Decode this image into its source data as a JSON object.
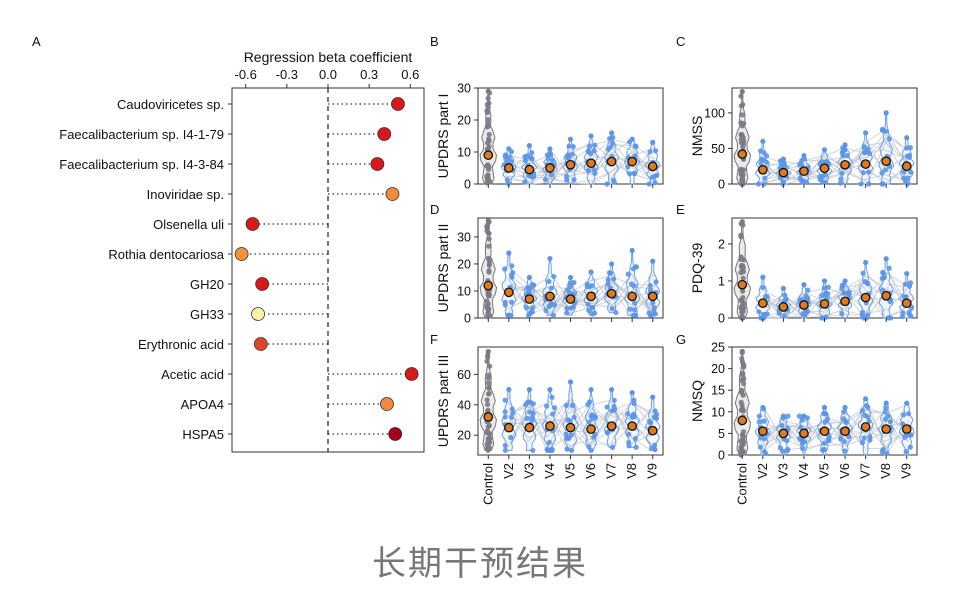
{
  "caption": "长期干预结果",
  "colors": {
    "control": "#7a7a85",
    "visit": "#5b95e6",
    "mean": "#e07a1f",
    "line": "#c8ccd4",
    "violin_stroke": "#6c9fe8"
  },
  "chart_data": [
    {
      "panel": "A",
      "type": "scatter",
      "title": "Regression beta coefficient",
      "xlim": [
        -0.7,
        0.7
      ],
      "xticks": [
        -0.6,
        -0.3,
        0.0,
        0.3,
        0.6
      ],
      "xtick_labels": [
        "-0.6",
        "-0.3",
        "0.0",
        "0.3",
        "0.6"
      ],
      "categories": [
        "Caudoviricetes sp.",
        "Faecalibacterium sp. I4-1-79",
        "Faecalibacterium sp. I4-3-84",
        "Inoviridae sp.",
        "Olsenella uli",
        "Rothia dentocariosa",
        "GH20",
        "GH33",
        "Erythronic acid",
        "Acetic acid",
        "APOA4",
        "HSPA5"
      ],
      "values": [
        0.51,
        0.41,
        0.36,
        0.47,
        -0.55,
        -0.63,
        -0.48,
        -0.51,
        -0.49,
        0.61,
        0.43,
        0.49
      ],
      "point_colors": [
        "#d7191c",
        "#d7191c",
        "#d7191c",
        "#f08a3c",
        "#d7191c",
        "#f3913c",
        "#d7191c",
        "#fff3a6",
        "#e3432a",
        "#d7191c",
        "#f08a3c",
        "#a6001f"
      ]
    },
    {
      "panel": "B",
      "type": "violin",
      "ylabel": "UPDRS part I",
      "categories": [
        "Control",
        "V2",
        "V3",
        "V4",
        "V5",
        "V6",
        "V7",
        "V8",
        "V9"
      ],
      "ylim": [
        0,
        30
      ],
      "yticks": [
        0,
        10,
        20,
        30
      ],
      "means": [
        9,
        5,
        4.5,
        5,
        6,
        6.5,
        7,
        7,
        5.5
      ],
      "maxima": [
        29,
        11,
        12,
        11,
        14,
        15,
        16,
        14,
        13
      ],
      "minima": [
        0,
        0,
        0,
        0,
        0,
        0,
        0,
        0,
        0
      ]
    },
    {
      "panel": "C",
      "type": "violin",
      "ylabel": "NMSS",
      "categories": [
        "Control",
        "V2",
        "V3",
        "V4",
        "V5",
        "V6",
        "V7",
        "V8",
        "V9"
      ],
      "ylim": [
        0,
        135
      ],
      "yticks": [
        0,
        50,
        100
      ],
      "means": [
        42,
        20,
        16,
        18,
        22,
        27,
        28,
        32,
        25
      ],
      "maxima": [
        130,
        60,
        35,
        40,
        48,
        55,
        72,
        100,
        65
      ],
      "minima": [
        0,
        0,
        0,
        0,
        0,
        0,
        0,
        0,
        0
      ]
    },
    {
      "panel": "D",
      "type": "violin",
      "ylabel": "UPDRS part II",
      "categories": [
        "Control",
        "V2",
        "V3",
        "V4",
        "V5",
        "V6",
        "V7",
        "V8",
        "V9"
      ],
      "ylim": [
        0,
        37
      ],
      "yticks": [
        0,
        10,
        20,
        30
      ],
      "means": [
        12,
        9.5,
        7,
        8,
        7,
        8,
        9,
        8,
        8
      ],
      "maxima": [
        36,
        24,
        15,
        22,
        15,
        17,
        20,
        25,
        21
      ],
      "minima": [
        0,
        1,
        1,
        1,
        1,
        1,
        2,
        1,
        1
      ]
    },
    {
      "panel": "E",
      "type": "violin",
      "ylabel": "PDQ-39",
      "categories": [
        "Control",
        "V2",
        "V3",
        "V4",
        "V5",
        "V6",
        "V7",
        "V8",
        "V9"
      ],
      "ylim": [
        0,
        2.7
      ],
      "yticks": [
        0,
        1,
        2
      ],
      "means": [
        0.9,
        0.4,
        0.3,
        0.35,
        0.38,
        0.45,
        0.55,
        0.6,
        0.4
      ],
      "maxima": [
        2.6,
        1.1,
        0.8,
        0.9,
        1.0,
        1.0,
        1.5,
        1.6,
        1.2
      ],
      "minima": [
        0,
        0,
        0,
        0,
        0,
        0,
        0,
        0,
        0
      ]
    },
    {
      "panel": "F",
      "type": "violin",
      "ylabel": "UPDRS part III",
      "categories": [
        "Control",
        "V2",
        "V3",
        "V4",
        "V5",
        "V6",
        "V7",
        "V8",
        "V9"
      ],
      "ylim": [
        7,
        78
      ],
      "yticks": [
        20,
        40,
        60
      ],
      "means": [
        32,
        25,
        25,
        26,
        25,
        24,
        26,
        26,
        23
      ],
      "maxima": [
        75,
        50,
        50,
        50,
        55,
        50,
        50,
        48,
        45
      ],
      "minima": [
        10,
        10,
        10,
        10,
        10,
        10,
        12,
        12,
        10
      ]
    },
    {
      "panel": "G",
      "type": "violin",
      "ylabel": "NMSQ",
      "categories": [
        "Control",
        "V2",
        "V3",
        "V4",
        "V5",
        "V6",
        "V7",
        "V8",
        "V9"
      ],
      "ylim": [
        0,
        25
      ],
      "yticks": [
        0,
        5,
        10,
        15,
        20,
        25
      ],
      "means": [
        8,
        5.5,
        5,
        5,
        5.5,
        5.5,
        6.5,
        6,
        6
      ],
      "maxima": [
        24,
        11,
        9,
        9,
        11,
        11,
        13,
        12,
        12
      ],
      "minima": [
        0,
        0,
        0,
        0,
        0,
        0,
        0,
        0,
        0
      ]
    }
  ]
}
